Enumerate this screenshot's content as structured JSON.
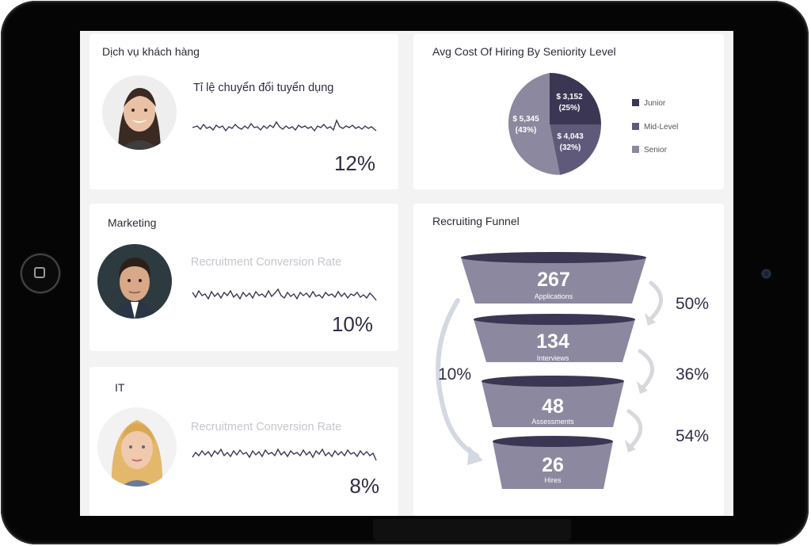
{
  "colors": {
    "accent_dark": "#3b3654",
    "accent_mid": "#5f5a7a",
    "accent_light": "#8c889f",
    "text_dark": "#2f2d45",
    "text_faded": "#c6c5cc"
  },
  "cards": [
    {
      "title": "Dịch vụ khách hàng",
      "metric_label": "Tỉ lệ chuyển đổi tuyển dụng",
      "value": "12%",
      "avatar": "woman-dark-hair-avatar"
    },
    {
      "title": "Marketing",
      "metric_label": "Recruitment Conversion Rate",
      "value": "10%",
      "avatar": "man-suit-avatar"
    },
    {
      "title": "IT",
      "metric_label": "Recruitment Conversion Rate",
      "value": "8%",
      "avatar": "woman-blonde-avatar"
    }
  ],
  "pie_card": {
    "title": "Avg Cost Of Hiring By Seniority Level",
    "slices": [
      {
        "name": "Junior",
        "value_label": "$ 3,152",
        "pct_label": "(25%)",
        "pct": 25,
        "color": "#3b3654"
      },
      {
        "name": "Mid-Level",
        "value_label": "$ 4,043",
        "pct_label": "(32%)",
        "pct": 32,
        "color": "#5f5a7a"
      },
      {
        "name": "Senior",
        "value_label": "$ 5,345",
        "pct_label": "(43%)",
        "pct": 43,
        "color": "#8c889f"
      }
    ]
  },
  "funnel_card": {
    "title": "Recruiting Funnel",
    "stages": [
      {
        "value": "267",
        "label": "Applications"
      },
      {
        "value": "134",
        "label": "Interviews"
      },
      {
        "value": "48",
        "label": "Assessments"
      },
      {
        "value": "26",
        "label": "Hires"
      }
    ],
    "step_rates": [
      "50%",
      "36%",
      "54%"
    ],
    "overall_rate": "10%"
  }
}
